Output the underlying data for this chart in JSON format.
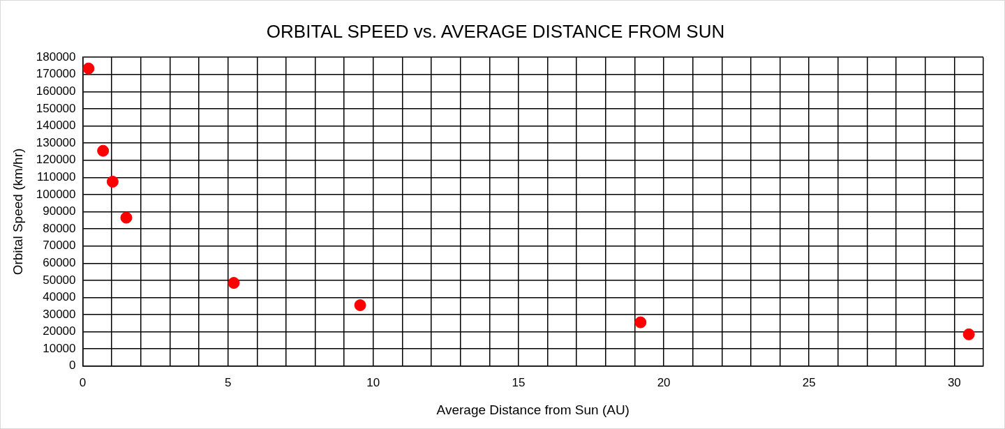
{
  "chart_data": {
    "type": "scatter",
    "title": "ORBITAL SPEED vs. AVERAGE DISTANCE FROM SUN",
    "xlabel": "Average Distance from Sun (AU)",
    "ylabel": "Orbital Speed (km/hr)",
    "x": [
      0.2,
      0.7,
      1.03,
      1.5,
      5.2,
      9.55,
      19.2,
      30.5
    ],
    "series": [
      {
        "color": "#ff0000",
        "values": [
          173500,
          125500,
          107500,
          86500,
          48500,
          35500,
          25500,
          18500
        ]
      }
    ],
    "xlim": [
      0,
      31
    ],
    "xticks": [
      0,
      {
        "value": 1,
        "label": null
      },
      {
        "value": 2,
        "label": null
      },
      {
        "value": 3,
        "label": null
      },
      {
        "value": 4,
        "label": null
      },
      5,
      {
        "value": 6,
        "label": null
      },
      {
        "value": 7,
        "label": null
      },
      {
        "value": 8,
        "label": null
      },
      {
        "value": 9,
        "label": null
      },
      10,
      {
        "value": 11,
        "label": null
      },
      {
        "value": 12,
        "label": null
      },
      {
        "value": 13,
        "label": null
      },
      {
        "value": 14,
        "label": null
      },
      15,
      {
        "value": 16,
        "label": null
      },
      {
        "value": 17,
        "label": null
      },
      {
        "value": 18,
        "label": null
      },
      {
        "value": 19,
        "label": null
      },
      20,
      {
        "value": 21,
        "label": null
      },
      {
        "value": 22,
        "label": null
      },
      {
        "value": 23,
        "label": null
      },
      {
        "value": 24,
        "label": null
      },
      25,
      {
        "value": 26,
        "label": null
      },
      {
        "value": 27,
        "label": null
      },
      {
        "value": 28,
        "label": null
      },
      {
        "value": 29,
        "label": null
      },
      30,
      {
        "value": 31,
        "label": null
      }
    ],
    "ylim": [
      0,
      180000
    ],
    "yticks": [
      0,
      10000,
      20000,
      30000,
      40000,
      50000,
      60000,
      70000,
      80000,
      90000,
      100000,
      110000,
      120000,
      130000,
      140000,
      150000,
      160000,
      170000,
      180000
    ],
    "grid": true,
    "legend": false,
    "marker": "circle"
  }
}
